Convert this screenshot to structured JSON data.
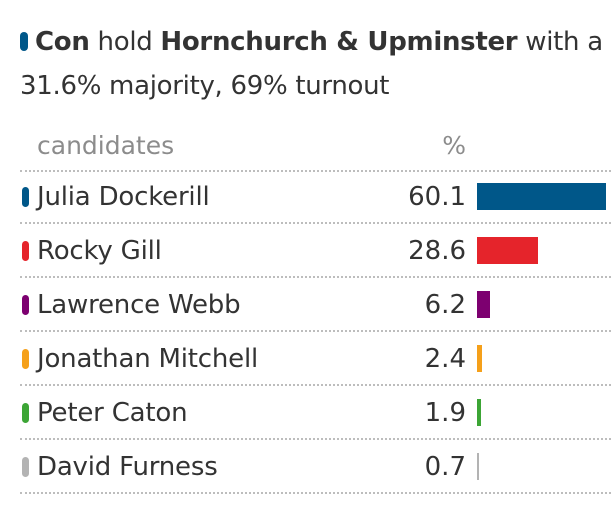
{
  "headline": {
    "party": "Con",
    "verb": " hold ",
    "constituency": "Hornchurch & Upminster",
    "tail": " with a 31.6% majority, 69% turnout",
    "party_color": "#005789"
  },
  "table": {
    "col_candidates": "candidates",
    "col_percent": "%"
  },
  "chart_data": {
    "type": "bar",
    "orientation": "horizontal",
    "categories": [
      "Julia Dockerill",
      "Rocky Gill",
      "Lawrence Webb",
      "Jonathan Mitchell",
      "Peter Caton",
      "David Furness"
    ],
    "values": [
      60.1,
      28.6,
      6.2,
      2.4,
      1.9,
      0.7
    ],
    "value_labels": [
      "60.1",
      "28.6",
      "6.2",
      "2.4",
      "1.9",
      "0.7"
    ],
    "colors": [
      "#005789",
      "#e5242b",
      "#7d0070",
      "#f5a01a",
      "#3ca535",
      "#b3b3b3"
    ],
    "xlim": [
      0,
      60.1
    ],
    "title": "",
    "xlabel": "",
    "ylabel": ""
  }
}
